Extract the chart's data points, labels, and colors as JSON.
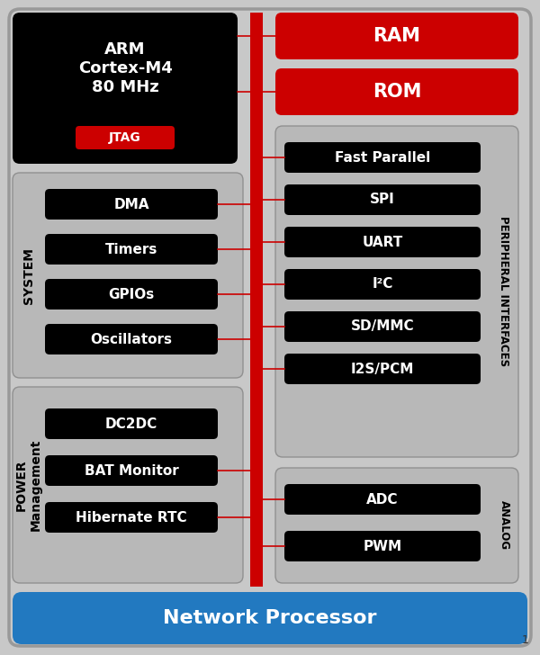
{
  "bg_color": "#c8c8c8",
  "black": "#000000",
  "red": "#cc0000",
  "blue": "#2279c0",
  "white": "#ffffff",
  "gray_box": "#b8b8b8",
  "title": "ARM\nCortex-M4\n80 MHz",
  "jtag_label": "JTAG",
  "system_label": "SYSTEM",
  "power_label": "POWER\nManagement",
  "peripheral_label": "PERIPHERAL INTERFACES",
  "analog_label": "ANALOG",
  "network_label": "Network Processor",
  "ram_label": "RAM",
  "rom_label": "ROM",
  "left_items": [
    "DMA",
    "Timers",
    "GPIOs",
    "Oscillators"
  ],
  "power_items": [
    "DC2DC",
    "BAT Monitor",
    "Hibernate RTC"
  ],
  "peripheral_items": [
    "Fast Parallel",
    "SPI",
    "UART",
    "I²C",
    "SD/MMC",
    "I2S/PCM"
  ],
  "analog_items": [
    "ADC",
    "PWM"
  ],
  "page_num": "1"
}
